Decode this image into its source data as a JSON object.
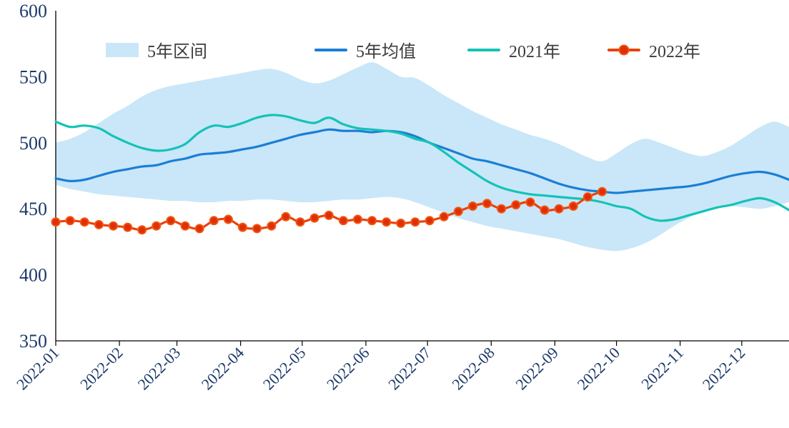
{
  "chart_data": {
    "type": "line",
    "title": "",
    "x_tick_labels": [
      "2022-01",
      "2022-02",
      "2022-03",
      "2022-04",
      "2022-05",
      "2022-06",
      "2022-07",
      "2022-08",
      "2022-09",
      "2022-10",
      "2022-11",
      "2022-12"
    ],
    "x_unit": "weekly points across year 2022",
    "ylim": [
      350,
      600
    ],
    "yticks": [
      350,
      400,
      450,
      500,
      550,
      600
    ],
    "grid": false,
    "legend_position": "top",
    "axis_color": "#1e3a6a",
    "band": {
      "name": "5年区间",
      "color": "#c9e7f8",
      "upper": [
        500,
        503,
        508,
        515,
        522,
        528,
        535,
        540,
        543,
        545,
        547,
        549,
        551,
        553,
        555,
        556,
        553,
        548,
        545,
        547,
        552,
        557,
        561,
        556,
        550,
        549,
        543,
        536,
        530,
        524,
        519,
        514,
        510,
        506,
        503,
        499,
        494,
        489,
        486,
        492,
        499,
        503,
        500,
        496,
        492,
        490,
        493,
        498,
        505,
        512,
        516,
        512
      ],
      "lower": [
        468,
        465,
        463,
        461,
        460,
        459,
        458,
        457,
        456,
        456,
        455,
        455,
        456,
        456,
        457,
        457,
        456,
        455,
        455,
        456,
        457,
        457,
        458,
        459,
        458,
        455,
        451,
        447,
        443,
        440,
        437,
        435,
        433,
        431,
        429,
        427,
        424,
        421,
        419,
        418,
        420,
        424,
        430,
        437,
        443,
        448,
        451,
        452,
        451,
        450,
        452,
        455
      ]
    },
    "series": [
      {
        "name": "5年均值",
        "color": "#1a7ed6",
        "marker": false,
        "values": [
          473,
          471,
          472,
          475,
          478,
          480,
          482,
          483,
          486,
          488,
          491,
          492,
          493,
          495,
          497,
          500,
          503,
          506,
          508,
          510,
          509,
          509,
          508,
          509,
          508,
          505,
          500,
          496,
          492,
          488,
          486,
          483,
          480,
          477,
          473,
          469,
          466,
          464,
          463,
          462,
          463,
          464,
          465,
          466,
          467,
          469,
          472,
          475,
          477,
          478,
          476,
          472
        ]
      },
      {
        "name": "2021年",
        "color": "#14c3b6",
        "marker": false,
        "values": [
          516,
          512,
          513,
          511,
          505,
          500,
          496,
          494,
          495,
          499,
          508,
          513,
          512,
          515,
          519,
          521,
          520,
          517,
          515,
          519,
          514,
          511,
          510,
          509,
          507,
          503,
          500,
          493,
          485,
          478,
          471,
          466,
          463,
          461,
          460,
          459,
          458,
          457,
          455,
          452,
          450,
          444,
          441,
          442,
          445,
          448,
          451,
          453,
          456,
          458,
          455,
          449
        ]
      },
      {
        "name": "2022年",
        "color": "#e8430e",
        "marker": true,
        "marker_fill": "#e02f08",
        "marker_stroke": "#f1560f",
        "values": [
          440,
          441,
          440,
          438,
          437,
          436,
          434,
          437,
          441,
          437,
          435,
          441,
          442,
          436,
          435,
          437,
          444,
          440,
          443,
          445,
          441,
          442,
          441,
          440,
          439,
          440,
          441,
          444,
          448,
          452,
          454,
          450,
          453,
          455,
          449,
          450,
          452,
          459,
          463
        ]
      }
    ],
    "legend": [
      "5年区间",
      "5年均值",
      "2021年",
      "2022年"
    ]
  }
}
